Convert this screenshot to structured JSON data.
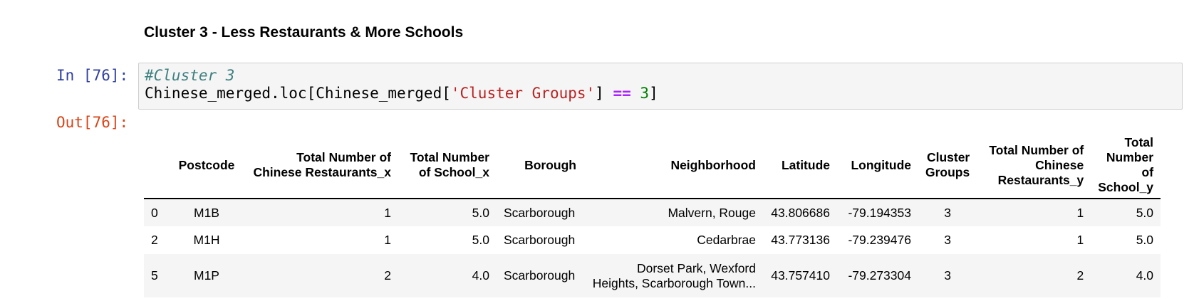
{
  "heading": "Cluster 3 - Less Restaurants & More Schools",
  "input_prompt": "In [76]:",
  "output_prompt": "Out[76]:",
  "code": {
    "line1_comment": "#Cluster 3",
    "line2": {
      "part1": "Chinese_merged.loc[Chinese_merged[",
      "string": "'Cluster Groups'",
      "part2": "] ",
      "op": "==",
      "space": " ",
      "num": "3",
      "part3": "]"
    }
  },
  "table": {
    "columns": [
      "",
      "Postcode",
      "Total Number of Chinese Restaurants_x",
      "Total Number of School_x",
      "Borough",
      "Neighborhood",
      "Latitude",
      "Longitude",
      "Cluster Groups",
      "Total Number of Chinese Restaurants_y",
      "Total Number of School_y"
    ],
    "rows": [
      [
        "0",
        "M1B",
        "1",
        "5.0",
        "Scarborough",
        "Malvern, Rouge",
        "43.806686",
        "-79.194353",
        "3",
        "1",
        "5.0"
      ],
      [
        "2",
        "M1H",
        "1",
        "5.0",
        "Scarborough",
        "Cedarbrae",
        "43.773136",
        "-79.239476",
        "3",
        "1",
        "5.0"
      ],
      [
        "5",
        "M1P",
        "2",
        "4.0",
        "Scarborough",
        "Dorset Park, Wexford Heights, Scarborough Town...",
        "43.757410",
        "-79.273304",
        "3",
        "2",
        "4.0"
      ]
    ]
  }
}
